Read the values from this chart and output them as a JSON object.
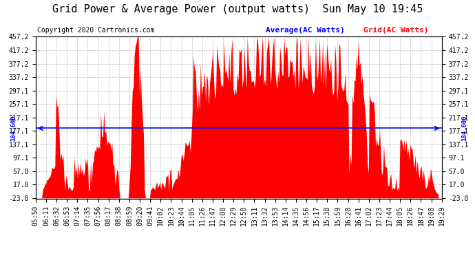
{
  "title": "Grid Power & Average Power (output watts)  Sun May 10 19:45",
  "copyright": "Copyright 2020 Cartronics.com",
  "legend_average": "Average(AC Watts)",
  "legend_grid": "Grid(AC Watts)",
  "average_value": 184.6,
  "average_label": "184.600",
  "y_min": -23.0,
  "y_max": 457.2,
  "ytick_values": [
    457.2,
    417.2,
    377.2,
    337.2,
    297.1,
    257.1,
    217.1,
    177.1,
    137.1,
    97.1,
    57.0,
    17.0,
    -23.0
  ],
  "fill_color": "#FF0000",
  "avg_line_color": "#0000FF",
  "background_color": "#FFFFFF",
  "plot_bg_color": "#FFFFFF",
  "grid_color": "#AAAAAA",
  "title_fontsize": 11,
  "copyright_fontsize": 7,
  "tick_fontsize": 7,
  "legend_fontsize": 8,
  "x_labels": [
    "05:50",
    "06:11",
    "06:32",
    "06:53",
    "07:14",
    "07:35",
    "07:56",
    "08:17",
    "08:38",
    "08:59",
    "09:20",
    "09:41",
    "10:02",
    "10:23",
    "10:44",
    "11:05",
    "11:26",
    "11:47",
    "12:08",
    "12:29",
    "12:50",
    "13:11",
    "13:32",
    "13:53",
    "14:14",
    "14:35",
    "14:56",
    "15:17",
    "15:38",
    "15:59",
    "16:20",
    "16:41",
    "17:02",
    "17:23",
    "17:44",
    "18:05",
    "18:26",
    "18:47",
    "19:08",
    "19:29"
  ]
}
